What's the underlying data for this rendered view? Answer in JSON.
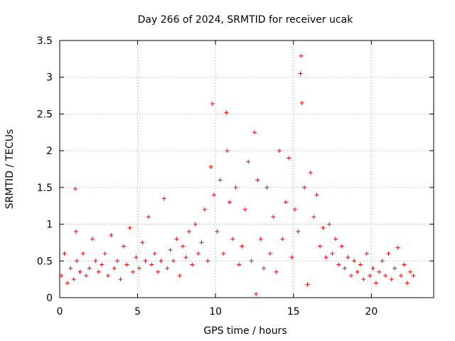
{
  "chart_data": {
    "type": "scatter",
    "title": "Day 266 of 2024, SRMTID for receiver ucak",
    "xlabel": "GPS time / hours",
    "ylabel": "SRMTID / TECUs",
    "xlim": [
      0,
      24
    ],
    "ylim": [
      0,
      3.5
    ],
    "xticks": [
      0,
      5,
      10,
      15,
      20
    ],
    "xtick_labels": [
      "0",
      "5",
      "10",
      "15",
      "20"
    ],
    "yticks": [
      0,
      0.5,
      1,
      1.5,
      2,
      2.5,
      3,
      3.5
    ],
    "ytick_labels": [
      "0",
      "0.5",
      "1",
      "1.5",
      "2",
      "2.5",
      "3",
      "3.5"
    ],
    "grid": true,
    "marker": "+",
    "series": [
      {
        "name": "SRMTID",
        "color": "#ff0000",
        "x": [
          0.1,
          0.3,
          0.5,
          0.7,
          0.9,
          1.0,
          1.05,
          1.1,
          1.3,
          1.5,
          1.7,
          1.9,
          2.1,
          2.3,
          2.5,
          2.7,
          2.9,
          3.1,
          3.3,
          3.5,
          3.7,
          3.9,
          4.1,
          4.3,
          4.5,
          4.7,
          4.9,
          5.1,
          5.3,
          5.5,
          5.7,
          5.9,
          6.1,
          6.3,
          6.5,
          6.7,
          6.9,
          7.1,
          7.3,
          7.5,
          7.7,
          7.9,
          8.1,
          8.3,
          8.5,
          8.7,
          8.9,
          9.1,
          9.3,
          9.5,
          9.7,
          9.8,
          9.9,
          10.1,
          10.3,
          10.5,
          10.7,
          10.75,
          10.9,
          11.1,
          11.3,
          11.5,
          11.7,
          11.9,
          12.1,
          12.3,
          12.5,
          12.6,
          12.7,
          12.9,
          13.1,
          13.3,
          13.5,
          13.7,
          13.9,
          14.1,
          14.3,
          14.5,
          14.7,
          14.9,
          15.1,
          15.3,
          15.45,
          15.5,
          15.55,
          15.7,
          15.9,
          16.1,
          16.3,
          16.5,
          16.7,
          16.9,
          17.1,
          17.3,
          17.5,
          17.7,
          17.9,
          18.1,
          18.3,
          18.5,
          18.7,
          18.9,
          19.1,
          19.3,
          19.5,
          19.7,
          19.9,
          20.1,
          20.3,
          20.5,
          20.7,
          20.9,
          21.1,
          21.3,
          21.5,
          21.7,
          21.9,
          22.1,
          22.3,
          22.5,
          22.7
        ],
        "values": [
          0.3,
          0.6,
          0.2,
          0.4,
          0.25,
          1.48,
          0.9,
          0.5,
          0.35,
          0.6,
          0.3,
          0.4,
          0.8,
          0.5,
          0.35,
          0.45,
          0.6,
          0.3,
          0.85,
          0.4,
          0.5,
          0.25,
          0.7,
          0.45,
          0.95,
          0.35,
          0.55,
          0.4,
          0.75,
          0.5,
          1.1,
          0.45,
          0.6,
          0.35,
          0.5,
          1.35,
          0.4,
          0.65,
          0.5,
          0.8,
          0.3,
          0.7,
          0.55,
          0.9,
          0.45,
          1.0,
          0.6,
          0.75,
          1.2,
          0.5,
          1.78,
          2.64,
          1.4,
          0.9,
          1.6,
          0.6,
          2.52,
          2.0,
          1.3,
          0.8,
          1.5,
          0.45,
          0.7,
          1.2,
          1.85,
          0.5,
          2.25,
          0.05,
          1.6,
          0.8,
          0.4,
          1.5,
          0.6,
          1.1,
          0.35,
          2.0,
          0.8,
          1.3,
          1.9,
          0.55,
          1.2,
          0.9,
          3.05,
          3.29,
          2.65,
          1.5,
          0.18,
          1.7,
          1.1,
          1.4,
          0.7,
          0.95,
          0.55,
          1.0,
          0.6,
          0.8,
          0.45,
          0.7,
          0.4,
          0.55,
          0.3,
          0.5,
          0.35,
          0.45,
          0.25,
          0.6,
          0.3,
          0.4,
          0.2,
          0.35,
          0.5,
          0.3,
          0.6,
          0.25,
          0.4,
          0.68,
          0.3,
          0.45,
          0.2,
          0.35,
          0.3
        ]
      }
    ]
  }
}
